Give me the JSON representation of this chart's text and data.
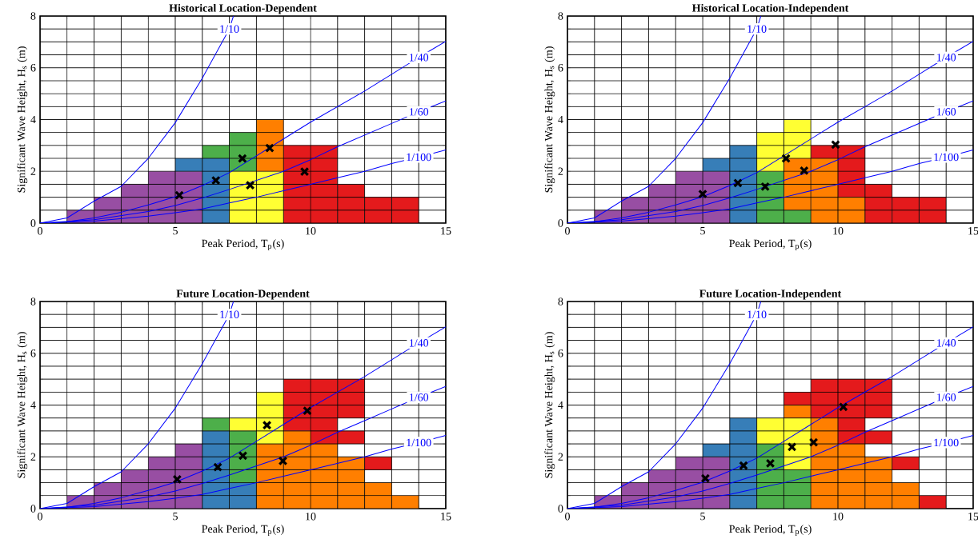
{
  "chart_data": [
    {
      "type": "bar",
      "title": "Historical Location-Dependent",
      "xlabel": "Peak Period,  T$_{p}$(s)",
      "ylabel": "Significant Wave Height,  H$_{s}$ (m)",
      "xlim": [
        0,
        15
      ],
      "ylim": [
        0,
        8
      ],
      "xticks": [
        0,
        {
          "value": 1,
          "label": null
        },
        {
          "value": 2,
          "label": null
        },
        {
          "value": 3,
          "label": null
        },
        {
          "value": 4,
          "label": null
        },
        5,
        {
          "value": 6,
          "label": null
        },
        {
          "value": 7,
          "label": null
        },
        {
          "value": 8,
          "label": null
        },
        {
          "value": 9,
          "label": null
        },
        10,
        {
          "value": 11,
          "label": null
        },
        {
          "value": 12,
          "label": null
        },
        {
          "value": 13,
          "label": null
        },
        {
          "value": 14,
          "label": null
        },
        15
      ],
      "yticks": [
        0,
        {
          "value": 0.5,
          "label": null
        },
        {
          "value": 1,
          "label": null
        },
        {
          "value": 1.5,
          "label": null
        },
        2,
        {
          "value": 2.5,
          "label": null
        },
        {
          "value": 3,
          "label": null
        },
        {
          "value": 3.5,
          "label": null
        },
        4,
        {
          "value": 4.5,
          "label": null
        },
        {
          "value": 5,
          "label": null
        },
        {
          "value": 5.5,
          "label": null
        },
        6,
        {
          "value": 6.5,
          "label": null
        },
        {
          "value": 7,
          "label": null
        },
        {
          "value": 7.5,
          "label": null
        },
        8
      ],
      "grid": true,
      "series": [
        {
          "type": "bar",
          "color": "#984ea3",
          "x": [
            1.5,
            2.5,
            3.5,
            4.5,
            5.5
          ],
          "base": [
            0,
            0,
            0,
            0,
            0
          ],
          "values": [
            0.5,
            1,
            1.5,
            2,
            2
          ]
        },
        {
          "type": "bar",
          "color": "#377eb8",
          "x": [
            5.5,
            6.5
          ],
          "base": [
            2,
            0
          ],
          "values": [
            0.5,
            2.5
          ]
        },
        {
          "type": "bar",
          "color": "#4daf4a",
          "x": [
            6.5,
            7.5
          ],
          "base": [
            2.5,
            2
          ],
          "values": [
            0.5,
            1.5
          ]
        },
        {
          "type": "bar",
          "color": "#ffff33",
          "x": [
            7.5,
            8.5
          ],
          "base": [
            0,
            0
          ],
          "values": [
            2,
            2
          ]
        },
        {
          "type": "bar",
          "color": "#ff7f00",
          "x": [
            8.5
          ],
          "base": [
            2
          ],
          "values": [
            2
          ]
        },
        {
          "type": "bar",
          "color": "#e41a1c",
          "x": [
            9.5,
            10.5,
            11.5,
            12.5,
            13.5
          ],
          "base": [
            0,
            0,
            0,
            0,
            0
          ],
          "values": [
            3,
            3,
            1.5,
            1,
            1
          ]
        },
        {
          "type": "line",
          "name": "1/10",
          "color": "#0000ff",
          "x": [
            0,
            1,
            2,
            3,
            4,
            5,
            6,
            7,
            7.15
          ],
          "values": [
            0,
            0.2,
            0.85,
            1.42,
            2.5,
            3.88,
            5.6,
            7.5,
            8
          ]
        },
        {
          "type": "line",
          "name": "1/40",
          "color": "#0000ff",
          "x": [
            0,
            1,
            2,
            3,
            4,
            5,
            6,
            7,
            8,
            9,
            10,
            11,
            12,
            13,
            14,
            15
          ],
          "values": [
            0,
            0.05,
            0.2,
            0.42,
            0.7,
            1.02,
            1.45,
            1.95,
            2.6,
            3.25,
            3.9,
            4.5,
            5.1,
            5.75,
            6.4,
            7.02
          ]
        },
        {
          "type": "line",
          "name": "1/60",
          "color": "#0000ff",
          "x": [
            0,
            2,
            4,
            5,
            6,
            7,
            8,
            9,
            10,
            11,
            12,
            13,
            14,
            15
          ],
          "values": [
            0,
            0.13,
            0.45,
            0.68,
            0.97,
            1.3,
            1.65,
            2,
            2.45,
            2.95,
            3.4,
            3.85,
            4.3,
            4.72
          ]
        },
        {
          "type": "line",
          "name": "1/100",
          "color": "#0000ff",
          "x": [
            0,
            2,
            4,
            5,
            6,
            7,
            8,
            9,
            10,
            11,
            12,
            13,
            14,
            15
          ],
          "values": [
            0,
            0.08,
            0.27,
            0.4,
            0.55,
            0.78,
            1,
            1.25,
            1.5,
            1.75,
            2,
            2.3,
            2.55,
            2.83
          ]
        },
        {
          "type": "scatter",
          "color": "#000000",
          "marker": "cross",
          "x": [
            5.15,
            6.5,
            7.48,
            8.49,
            7.77,
            9.78
          ],
          "values": [
            1.08,
            1.65,
            2.5,
            2.9,
            1.46,
            1.99
          ]
        }
      ]
    },
    {
      "type": "bar",
      "title": "Historical Location-Independent",
      "xlabel": "Peak Period,  T$_{p}$(s)",
      "ylabel": "Significant Wave Height,  H$_{s}$ (m)",
      "xlim": [
        0,
        15
      ],
      "ylim": [
        0,
        8
      ],
      "xticks": [
        0,
        {
          "value": 1,
          "label": null
        },
        {
          "value": 2,
          "label": null
        },
        {
          "value": 3,
          "label": null
        },
        {
          "value": 4,
          "label": null
        },
        5,
        {
          "value": 6,
          "label": null
        },
        {
          "value": 7,
          "label": null
        },
        {
          "value": 8,
          "label": null
        },
        {
          "value": 9,
          "label": null
        },
        10,
        {
          "value": 11,
          "label": null
        },
        {
          "value": 12,
          "label": null
        },
        {
          "value": 13,
          "label": null
        },
        {
          "value": 14,
          "label": null
        },
        15
      ],
      "yticks": [
        0,
        {
          "value": 0.5,
          "label": null
        },
        {
          "value": 1,
          "label": null
        },
        {
          "value": 1.5,
          "label": null
        },
        2,
        {
          "value": 2.5,
          "label": null
        },
        {
          "value": 3,
          "label": null
        },
        {
          "value": 3.5,
          "label": null
        },
        4,
        {
          "value": 4.5,
          "label": null
        },
        {
          "value": 5,
          "label": null
        },
        {
          "value": 5.5,
          "label": null
        },
        6,
        {
          "value": 6.5,
          "label": null
        },
        {
          "value": 7,
          "label": null
        },
        {
          "value": 7.5,
          "label": null
        },
        8
      ],
      "grid": true,
      "series": [
        {
          "type": "bar",
          "color": "#984ea3",
          "x": [
            1.5,
            2.5,
            3.5,
            4.5,
            5.5
          ],
          "base": [
            0,
            0,
            0,
            0,
            0
          ],
          "values": [
            0.5,
            1,
            1.5,
            2,
            2
          ]
        },
        {
          "type": "bar",
          "color": "#377eb8",
          "x": [
            5.5,
            6.5
          ],
          "base": [
            2,
            0
          ],
          "values": [
            0.5,
            3
          ]
        },
        {
          "type": "bar",
          "color": "#4daf4a",
          "x": [
            7.5,
            8.5
          ],
          "base": [
            0,
            0
          ],
          "values": [
            2,
            0.5
          ]
        },
        {
          "type": "bar",
          "color": "#ffff33",
          "x": [
            7.5,
            8.5
          ],
          "base": [
            2,
            2.5
          ],
          "values": [
            1.5,
            1.5
          ]
        },
        {
          "type": "bar",
          "color": "#ff7f00",
          "x": [
            8.5,
            9.5,
            10.5
          ],
          "base": [
            0.5,
            0,
            0
          ],
          "values": [
            2,
            2.5,
            1
          ]
        },
        {
          "type": "bar",
          "color": "#e41a1c",
          "x": [
            9.5,
            10.5,
            11.5,
            12.5,
            13.5
          ],
          "base": [
            2.5,
            1,
            0,
            0,
            0
          ],
          "values": [
            0.5,
            2,
            1.5,
            1,
            1
          ]
        },
        {
          "type": "line",
          "name": "1/10",
          "color": "#0000ff",
          "x": [
            0,
            1,
            2,
            3,
            4,
            5,
            6,
            7,
            7.15
          ],
          "values": [
            0,
            0.2,
            0.85,
            1.42,
            2.5,
            3.88,
            5.6,
            7.5,
            8
          ]
        },
        {
          "type": "line",
          "name": "1/40",
          "color": "#0000ff",
          "x": [
            0,
            1,
            2,
            3,
            4,
            5,
            6,
            7,
            8,
            9,
            10,
            11,
            12,
            13,
            14,
            15
          ],
          "values": [
            0,
            0.05,
            0.2,
            0.42,
            0.7,
            1.02,
            1.45,
            1.95,
            2.6,
            3.25,
            3.9,
            4.5,
            5.1,
            5.75,
            6.4,
            7.02
          ]
        },
        {
          "type": "line",
          "name": "1/60",
          "color": "#0000ff",
          "x": [
            0,
            2,
            4,
            5,
            6,
            7,
            8,
            9,
            10,
            11,
            12,
            13,
            14,
            15
          ],
          "values": [
            0,
            0.13,
            0.45,
            0.68,
            0.97,
            1.3,
            1.65,
            2,
            2.45,
            2.95,
            3.4,
            3.85,
            4.3,
            4.72
          ]
        },
        {
          "type": "line",
          "name": "1/100",
          "color": "#0000ff",
          "x": [
            0,
            2,
            4,
            5,
            6,
            7,
            8,
            9,
            10,
            11,
            12,
            13,
            14,
            15
          ],
          "values": [
            0,
            0.08,
            0.27,
            0.4,
            0.55,
            0.78,
            1,
            1.25,
            1.5,
            1.75,
            2,
            2.3,
            2.55,
            2.83
          ]
        },
        {
          "type": "scatter",
          "color": "#000000",
          "marker": "cross",
          "x": [
            5,
            6.3,
            7.31,
            8.08,
            8.75,
            9.91
          ],
          "values": [
            1.12,
            1.55,
            1.41,
            2.5,
            2.03,
            3.03
          ]
        }
      ]
    },
    {
      "type": "bar",
      "title": "Future Location-Dependent",
      "xlabel": "Peak Period,  T$_{p}$(s)",
      "ylabel": "Significant Wave Height,  H$_{s}$ (m)",
      "xlim": [
        0,
        15
      ],
      "ylim": [
        0,
        8
      ],
      "xticks": [
        0,
        {
          "value": 1,
          "label": null
        },
        {
          "value": 2,
          "label": null
        },
        {
          "value": 3,
          "label": null
        },
        {
          "value": 4,
          "label": null
        },
        5,
        {
          "value": 6,
          "label": null
        },
        {
          "value": 7,
          "label": null
        },
        {
          "value": 8,
          "label": null
        },
        {
          "value": 9,
          "label": null
        },
        10,
        {
          "value": 11,
          "label": null
        },
        {
          "value": 12,
          "label": null
        },
        {
          "value": 13,
          "label": null
        },
        {
          "value": 14,
          "label": null
        },
        15
      ],
      "yticks": [
        0,
        {
          "value": 0.5,
          "label": null
        },
        {
          "value": 1,
          "label": null
        },
        {
          "value": 1.5,
          "label": null
        },
        2,
        {
          "value": 2.5,
          "label": null
        },
        {
          "value": 3,
          "label": null
        },
        {
          "value": 3.5,
          "label": null
        },
        4,
        {
          "value": 4.5,
          "label": null
        },
        {
          "value": 5,
          "label": null
        },
        {
          "value": 5.5,
          "label": null
        },
        6,
        {
          "value": 6.5,
          "label": null
        },
        {
          "value": 7,
          "label": null
        },
        {
          "value": 7.5,
          "label": null
        },
        8
      ],
      "grid": true,
      "series": [
        {
          "type": "bar",
          "color": "#984ea3",
          "x": [
            1.5,
            2.5,
            3.5,
            4.5,
            5.5
          ],
          "base": [
            0,
            0,
            0,
            0,
            0
          ],
          "values": [
            0.5,
            1,
            1.5,
            2,
            2.5
          ]
        },
        {
          "type": "bar",
          "color": "#377eb8",
          "x": [
            6.5,
            7.5
          ],
          "base": [
            0,
            0
          ],
          "values": [
            3,
            1
          ]
        },
        {
          "type": "bar",
          "color": "#4daf4a",
          "x": [
            6.5,
            7.5
          ],
          "base": [
            3,
            1
          ],
          "values": [
            0.5,
            2
          ]
        },
        {
          "type": "bar",
          "color": "#ffff33",
          "x": [
            7.5,
            8.5
          ],
          "base": [
            3,
            2.5
          ],
          "values": [
            0.5,
            2
          ]
        },
        {
          "type": "bar",
          "color": "#ff7f00",
          "x": [
            8.5,
            9.5,
            10.5,
            11.5,
            12.5,
            13.5
          ],
          "base": [
            0,
            0,
            0,
            0,
            0,
            0
          ],
          "values": [
            2.5,
            3,
            2.5,
            2,
            1,
            0.5
          ]
        },
        {
          "type": "bar",
          "color": "#e41a1c",
          "x": [
            9.5,
            10.5,
            11.5,
            12.5
          ],
          "base": [
            3,
            2.5,
            3.5,
            1.5
          ],
          "values": [
            2,
            2.5,
            1.5,
            0.5
          ]
        },
        {
          "type": "bar",
          "color": "#e41a1c",
          "x": [
            11.5
          ],
          "base": [
            2.5
          ],
          "values": [
            0.5
          ]
        },
        {
          "type": "line",
          "name": "1/10",
          "color": "#0000ff",
          "x": [
            0,
            1,
            2,
            3,
            4,
            5,
            6,
            7,
            7.15
          ],
          "values": [
            0,
            0.2,
            0.85,
            1.42,
            2.5,
            3.88,
            5.6,
            7.5,
            8
          ]
        },
        {
          "type": "line",
          "name": "1/40",
          "color": "#0000ff",
          "x": [
            0,
            1,
            2,
            3,
            4,
            5,
            6,
            7,
            8,
            9,
            10,
            11,
            12,
            13,
            14,
            15
          ],
          "values": [
            0,
            0.05,
            0.2,
            0.42,
            0.7,
            1.02,
            1.45,
            1.95,
            2.6,
            3.25,
            3.9,
            4.5,
            5.1,
            5.75,
            6.4,
            7.02
          ]
        },
        {
          "type": "line",
          "name": "1/60",
          "color": "#0000ff",
          "x": [
            0,
            2,
            4,
            5,
            6,
            7,
            8,
            9,
            10,
            11,
            12,
            13,
            14,
            15
          ],
          "values": [
            0,
            0.13,
            0.45,
            0.68,
            0.97,
            1.3,
            1.65,
            2,
            2.45,
            2.95,
            3.4,
            3.85,
            4.3,
            4.72
          ]
        },
        {
          "type": "line",
          "name": "1/100",
          "color": "#0000ff",
          "x": [
            0,
            2,
            4,
            5,
            6,
            7,
            8,
            9,
            10,
            11,
            12,
            13,
            14,
            15
          ],
          "values": [
            0,
            0.08,
            0.27,
            0.4,
            0.55,
            0.78,
            1,
            1.25,
            1.5,
            1.75,
            2,
            2.3,
            2.55,
            2.83
          ]
        },
        {
          "type": "scatter",
          "color": "#000000",
          "marker": "cross",
          "x": [
            5.07,
            6.57,
            7.5,
            8.39,
            8.98,
            9.88
          ],
          "values": [
            1.13,
            1.6,
            2.04,
            3.22,
            1.84,
            3.78
          ]
        }
      ]
    },
    {
      "type": "bar",
      "title": "Future Location-Independent",
      "xlabel": "Peak Period,  T$_{p}$(s)",
      "ylabel": "Significant Wave Height,  H$_{s}$ (m)",
      "xlim": [
        0,
        15
      ],
      "ylim": [
        0,
        8
      ],
      "xticks": [
        0,
        {
          "value": 1,
          "label": null
        },
        {
          "value": 2,
          "label": null
        },
        {
          "value": 3,
          "label": null
        },
        {
          "value": 4,
          "label": null
        },
        5,
        {
          "value": 6,
          "label": null
        },
        {
          "value": 7,
          "label": null
        },
        {
          "value": 8,
          "label": null
        },
        {
          "value": 9,
          "label": null
        },
        10,
        {
          "value": 11,
          "label": null
        },
        {
          "value": 12,
          "label": null
        },
        {
          "value": 13,
          "label": null
        },
        {
          "value": 14,
          "label": null
        },
        15
      ],
      "yticks": [
        0,
        {
          "value": 0.5,
          "label": null
        },
        {
          "value": 1,
          "label": null
        },
        {
          "value": 1.5,
          "label": null
        },
        2,
        {
          "value": 2.5,
          "label": null
        },
        {
          "value": 3,
          "label": null
        },
        {
          "value": 3.5,
          "label": null
        },
        4,
        {
          "value": 4.5,
          "label": null
        },
        {
          "value": 5,
          "label": null
        },
        {
          "value": 5.5,
          "label": null
        },
        6,
        {
          "value": 6.5,
          "label": null
        },
        {
          "value": 7,
          "label": null
        },
        {
          "value": 7.5,
          "label": null
        },
        8
      ],
      "grid": true,
      "series": [
        {
          "type": "bar",
          "color": "#984ea3",
          "x": [
            1.5,
            2.5,
            3.5,
            4.5,
            5.5
          ],
          "base": [
            0,
            0,
            0,
            0,
            0
          ],
          "values": [
            0.5,
            1,
            1.5,
            2,
            2
          ]
        },
        {
          "type": "bar",
          "color": "#377eb8",
          "x": [
            5.5,
            6.5
          ],
          "base": [
            2,
            0
          ],
          "values": [
            0.5,
            3.5
          ]
        },
        {
          "type": "bar",
          "color": "#4daf4a",
          "x": [
            7.5,
            8.5
          ],
          "base": [
            0,
            0
          ],
          "values": [
            2.5,
            1.5
          ]
        },
        {
          "type": "bar",
          "color": "#ffff33",
          "x": [
            7.5,
            8.5
          ],
          "base": [
            2.5,
            1.5
          ],
          "values": [
            1,
            2
          ]
        },
        {
          "type": "bar",
          "color": "#ff7f00",
          "x": [
            8.5,
            9.5,
            10.5,
            11.5,
            12.5
          ],
          "base": [
            3.5,
            0,
            0,
            0,
            0
          ],
          "values": [
            0.5,
            3.5,
            2.5,
            2,
            1
          ]
        },
        {
          "type": "bar",
          "color": "#e41a1c",
          "x": [
            8.5,
            9.5,
            10.5,
            11.5,
            12.5,
            13.5
          ],
          "base": [
            4,
            3.5,
            2.5,
            3.5,
            1.5,
            0
          ],
          "values": [
            0.5,
            1.5,
            2.5,
            1.5,
            0.5,
            0.5
          ]
        },
        {
          "type": "bar",
          "color": "#e41a1c",
          "x": [
            11.5
          ],
          "base": [
            2.5
          ],
          "values": [
            0.5
          ]
        },
        {
          "type": "line",
          "name": "1/10",
          "color": "#0000ff",
          "x": [
            0,
            1,
            2,
            3,
            4,
            5,
            6,
            7,
            7.15
          ],
          "values": [
            0,
            0.2,
            0.85,
            1.42,
            2.5,
            3.88,
            5.6,
            7.5,
            8
          ]
        },
        {
          "type": "line",
          "name": "1/40",
          "color": "#0000ff",
          "x": [
            0,
            1,
            2,
            3,
            4,
            5,
            6,
            7,
            8,
            9,
            10,
            11,
            12,
            13,
            14,
            15
          ],
          "values": [
            0,
            0.05,
            0.2,
            0.42,
            0.7,
            1.02,
            1.45,
            1.95,
            2.6,
            3.25,
            3.9,
            4.5,
            5.1,
            5.75,
            6.4,
            7.02
          ]
        },
        {
          "type": "line",
          "name": "1/60",
          "color": "#0000ff",
          "x": [
            0,
            2,
            4,
            5,
            6,
            7,
            8,
            9,
            10,
            11,
            12,
            13,
            14,
            15
          ],
          "values": [
            0,
            0.13,
            0.45,
            0.68,
            0.97,
            1.3,
            1.65,
            2,
            2.45,
            2.95,
            3.4,
            3.85,
            4.3,
            4.72
          ]
        },
        {
          "type": "line",
          "name": "1/100",
          "color": "#0000ff",
          "x": [
            0,
            2,
            4,
            5,
            6,
            7,
            8,
            9,
            10,
            11,
            12,
            13,
            14,
            15
          ],
          "values": [
            0,
            0.08,
            0.27,
            0.4,
            0.55,
            0.78,
            1,
            1.25,
            1.5,
            1.75,
            2,
            2.3,
            2.55,
            2.83
          ]
        },
        {
          "type": "scatter",
          "color": "#000000",
          "marker": "cross",
          "x": [
            5.1,
            6.51,
            7.5,
            8.3,
            9.1,
            10.2
          ],
          "values": [
            1.17,
            1.66,
            1.75,
            2.38,
            2.56,
            3.93
          ]
        }
      ]
    }
  ]
}
